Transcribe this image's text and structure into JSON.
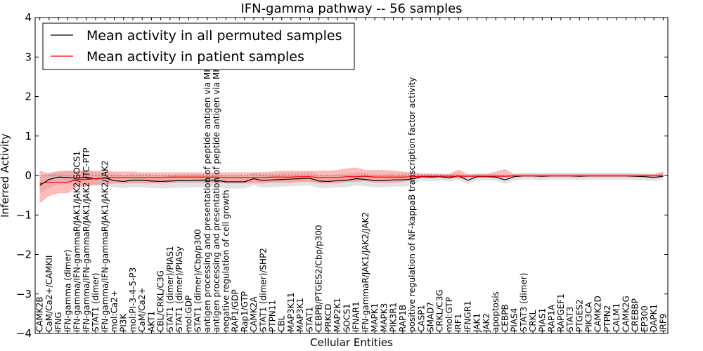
{
  "chart_data": {
    "type": "line",
    "title": "IFN-gamma pathway -- 56 samples",
    "xlabel": "Cellular Entities",
    "ylabel": "Inferred Activity",
    "ylim": [
      -4,
      4
    ],
    "yticks": [
      -4,
      -3,
      -2,
      -1,
      0,
      1,
      2,
      3,
      4
    ],
    "categories": [
      "CAMK2B",
      "CaM/Ca2+/CAMKII",
      "IFNG",
      "IFN-gamma (dimer)",
      "IFN-gamma/IFN-gammaR/JAK1/JAK2/SOCS1",
      "IFN-gamma/IFN-gammaR/JAK1/JAK2  /TC-PTP",
      "STAT1 (dimer)",
      "IFN-gamma/IFN-gammaR/JAK1/JAK2/JAK2",
      "mol:Ca2+",
      "PI3K",
      "mol:PI-3-4-5-P3",
      "CaM/Ca2+",
      "AKT1",
      "CBL/CRKL/C3G",
      "STAT1 (dimer)/PIAS1",
      "STAT1 (dimer)/PIASy",
      "mol:GDP",
      "STAT1 (dimer)/Cbp/p300",
      "antigen processing and presentation of peptide antigen via MHC class I",
      "antigen processing and presentation of peptide antigen via MHC class II",
      "negative regulation of cell growth",
      "RAP1/GDP",
      "Rap1/GTP",
      "CAMK2A",
      "STAT1 (dimer)/SHP2",
      "PTPN11",
      "CBL",
      "MAP3K11",
      "MAP3K1",
      "STAT1",
      "CEBPB/PTGES2/Cbp/p300",
      "PRKCD",
      "MAP2K1",
      "SOCS1",
      "IFNAR1",
      "IFN-gammaR/JAK1/JAK2/JAK2",
      "MAPK1",
      "MAPK3",
      "PIK3R1",
      "RAP1B",
      "positive regulation of NF-kappaB transcription factor activity",
      "CASP1",
      "SMAD7",
      "CRKL/C3G",
      "mol:GTP",
      "IRF1",
      "IFNGR1",
      "JAK1",
      "JAK2",
      "apoptosis",
      "CEBPB",
      "PIAS4",
      "STAT3 (dimer)",
      "CRKL",
      "PIAS1",
      "RAP1A",
      "RAPGEF1",
      "STAT3",
      "PTGES2",
      "PIK3CA",
      "CAMK2D",
      "PTPN2",
      "CALM1",
      "CAMK2G",
      "CREBBP",
      "EP300",
      "DAPK1",
      "IRF9"
    ],
    "series": [
      {
        "name": "Mean activity in all permuted samples",
        "color": "#000000",
        "values": [
          -0.25,
          -0.1,
          -0.04,
          -0.05,
          -0.07,
          -0.04,
          -0.09,
          -0.06,
          -0.13,
          -0.15,
          -0.12,
          -0.12,
          -0.14,
          -0.15,
          -0.14,
          -0.13,
          -0.13,
          -0.12,
          -0.12,
          -0.12,
          -0.16,
          -0.16,
          -0.16,
          -0.08,
          -0.13,
          -0.11,
          -0.1,
          -0.09,
          -0.08,
          -0.07,
          -0.14,
          -0.15,
          -0.13,
          -0.12,
          -0.08,
          -0.1,
          -0.13,
          -0.13,
          -0.11,
          -0.11,
          -0.09,
          -0.03,
          -0.04,
          -0.03,
          -0.06,
          -0.01,
          -0.12,
          -0.03,
          -0.03,
          -0.04,
          -0.11,
          -0.03,
          -0.01,
          -0.01,
          -0.02,
          -0.01,
          -0.01,
          -0.01,
          -0.02,
          -0.01,
          -0.01,
          -0.01,
          -0.01,
          -0.01,
          -0.02,
          -0.03,
          -0.05,
          -0.02
        ],
        "lower": [
          -0.45,
          -0.32,
          -0.22,
          -0.22,
          -0.24,
          -0.22,
          -0.25,
          -0.23,
          -0.3,
          -0.32,
          -0.3,
          -0.3,
          -0.32,
          -0.33,
          -0.32,
          -0.31,
          -0.31,
          -0.3,
          -0.3,
          -0.3,
          -0.33,
          -0.33,
          -0.33,
          -0.25,
          -0.31,
          -0.29,
          -0.28,
          -0.27,
          -0.26,
          -0.25,
          -0.31,
          -0.32,
          -0.3,
          -0.3,
          -0.25,
          -0.27,
          -0.3,
          -0.3,
          -0.28,
          -0.28,
          -0.25,
          -0.12,
          -0.14,
          -0.12,
          -0.15,
          -0.1,
          -0.22,
          -0.12,
          -0.12,
          -0.13,
          -0.21,
          -0.12,
          -0.1,
          -0.1,
          -0.11,
          -0.1,
          -0.1,
          -0.1,
          -0.11,
          -0.1,
          -0.1,
          -0.1,
          -0.1,
          -0.1,
          -0.11,
          -0.12,
          -0.14,
          -0.11
        ],
        "upper": [
          -0.05,
          0.08,
          0.12,
          0.12,
          0.1,
          0.12,
          0.08,
          0.1,
          0.03,
          0.01,
          0.04,
          0.04,
          0.02,
          0.01,
          0.02,
          0.03,
          0.03,
          0.04,
          0.04,
          0.04,
          0.0,
          0.0,
          0.0,
          0.08,
          0.03,
          0.05,
          0.06,
          0.07,
          0.08,
          0.09,
          0.02,
          0.01,
          0.03,
          0.04,
          0.08,
          0.06,
          0.03,
          0.03,
          0.05,
          0.05,
          0.06,
          0.05,
          0.05,
          0.05,
          0.03,
          0.07,
          -0.01,
          0.05,
          0.05,
          0.04,
          -0.01,
          0.05,
          0.07,
          0.07,
          0.06,
          0.07,
          0.07,
          0.07,
          0.06,
          0.07,
          0.07,
          0.07,
          0.07,
          0.07,
          0.06,
          0.05,
          0.03,
          0.06
        ]
      },
      {
        "name": "Mean activity in patient samples",
        "color": "#ff0000",
        "values": [
          -0.2,
          -0.17,
          -0.17,
          -0.17,
          -0.1,
          -0.1,
          -0.08,
          -0.06,
          -0.05,
          -0.05,
          -0.05,
          -0.05,
          -0.05,
          -0.05,
          -0.04,
          -0.04,
          -0.04,
          -0.04,
          -0.04,
          -0.04,
          -0.05,
          -0.05,
          -0.05,
          -0.05,
          -0.05,
          -0.04,
          -0.04,
          -0.04,
          -0.03,
          -0.03,
          -0.05,
          -0.05,
          -0.05,
          -0.03,
          -0.03,
          -0.02,
          -0.04,
          -0.04,
          -0.04,
          -0.04,
          -0.03,
          -0.02,
          -0.02,
          -0.02,
          -0.02,
          -0.02,
          -0.02,
          -0.02,
          -0.02,
          -0.02,
          -0.02,
          -0.01,
          -0.01,
          -0.01,
          -0.01,
          -0.01,
          -0.01,
          -0.01,
          -0.01,
          -0.01,
          -0.01,
          -0.01,
          -0.01,
          -0.01,
          -0.01,
          -0.01,
          -0.01,
          0.0
        ],
        "lower": [
          -0.7,
          -0.52,
          -0.45,
          -0.45,
          -0.3,
          -0.28,
          -0.24,
          -0.22,
          -0.2,
          -0.2,
          -0.2,
          -0.2,
          -0.2,
          -0.2,
          -0.18,
          -0.18,
          -0.18,
          -0.18,
          -0.18,
          -0.18,
          -0.2,
          -0.2,
          -0.2,
          -0.2,
          -0.2,
          -0.18,
          -0.18,
          -0.18,
          -0.16,
          -0.16,
          -0.2,
          -0.2,
          -0.2,
          -0.16,
          -0.16,
          -0.14,
          -0.18,
          -0.18,
          -0.18,
          -0.16,
          -0.12,
          -0.05,
          -0.05,
          -0.05,
          -0.05,
          -0.08,
          -0.05,
          -0.05,
          -0.05,
          -0.05,
          -0.05,
          -0.04,
          -0.04,
          -0.04,
          -0.04,
          -0.04,
          -0.04,
          -0.04,
          -0.04,
          -0.04,
          -0.04,
          -0.04,
          -0.04,
          -0.04,
          -0.04,
          -0.04,
          -0.04,
          -0.04
        ],
        "upper": [
          0.12,
          0.05,
          0.1,
          0.12,
          0.12,
          0.12,
          0.12,
          0.12,
          0.1,
          0.1,
          0.1,
          0.08,
          0.08,
          0.08,
          0.08,
          0.08,
          0.08,
          0.08,
          0.08,
          0.08,
          0.08,
          0.08,
          0.08,
          0.08,
          0.09,
          0.1,
          0.12,
          0.12,
          0.12,
          0.12,
          0.12,
          0.12,
          0.14,
          0.18,
          0.2,
          0.14,
          0.14,
          0.14,
          0.12,
          0.1,
          0.08,
          0.05,
          0.05,
          0.04,
          0.04,
          0.15,
          0.04,
          0.04,
          0.04,
          0.1,
          0.16,
          0.04,
          0.04,
          0.04,
          0.04,
          0.04,
          0.04,
          0.04,
          0.04,
          0.04,
          0.04,
          0.04,
          0.04,
          0.04,
          0.04,
          0.04,
          0.04,
          0.1
        ]
      }
    ],
    "reference_line": 0,
    "legend": "top-left"
  }
}
